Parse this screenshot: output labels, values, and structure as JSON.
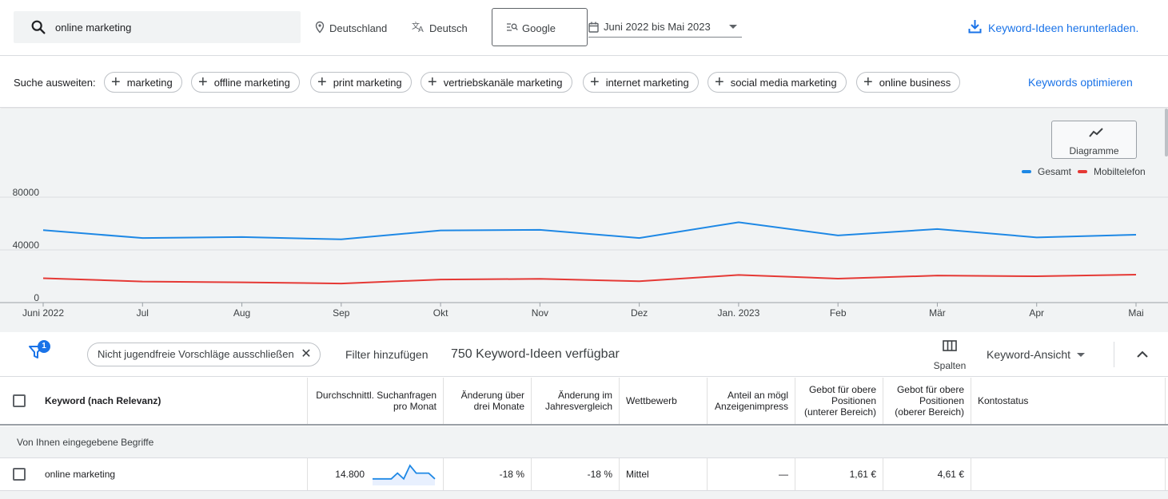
{
  "search": {
    "query": "online marketing"
  },
  "top": {
    "location": "Deutschland",
    "language": "Deutsch",
    "network": "Google",
    "date_range": "Juni 2022 bis Mai 2023",
    "download": "Keyword-Ideen herunterladen."
  },
  "expand": {
    "label": "Suche ausweiten:",
    "chips": [
      "marketing",
      "offline marketing",
      "print marketing",
      "vertriebskanäle marketing",
      "internet marketing",
      "social media marketing",
      "online business"
    ],
    "optimize": "Keywords optimieren"
  },
  "chart_button": {
    "label": "Diagramme"
  },
  "chart_data": {
    "type": "line",
    "x": [
      "Juni 2022",
      "Jul",
      "Aug",
      "Sep",
      "Okt",
      "Nov",
      "Dez",
      "Jan. 2023",
      "Feb",
      "Mär",
      "Apr",
      "Mai"
    ],
    "series": [
      {
        "name": "Gesamt",
        "color": "#1e88e5",
        "values": [
          55000,
          49000,
          49800,
          48000,
          54800,
          55200,
          49000,
          61000,
          51000,
          55800,
          49500,
          51500
        ]
      },
      {
        "name": "Mobiltelefon",
        "color": "#e53935",
        "values": [
          18500,
          16000,
          15400,
          14500,
          17500,
          18000,
          16200,
          21000,
          18200,
          20500,
          20000,
          21200
        ]
      }
    ],
    "yticks": [
      "0",
      "40000",
      "80000"
    ],
    "ylim": [
      0,
      80000
    ],
    "grid": true,
    "legend": "top-right"
  },
  "filter": {
    "badge_count": "1",
    "active_filter": "Nicht jugendfreie Vorschläge ausschließen",
    "add_filter": "Filter hinzufügen",
    "ideas_count": "750 Keyword-Ideen verfügbar",
    "columns": "Spalten",
    "view": "Keyword-Ansicht"
  },
  "table": {
    "headers": {
      "keyword": "Keyword (nach Relevanz)",
      "avg_searches": "Durchschnittl. Suchanfragen pro Monat",
      "change_3m": "Änderung über drei Monate",
      "change_yoy": "Änderung im Jahresvergleich",
      "competition": "Wettbewerb",
      "impr_share": "Anteil an mögl Anzeigenimpress",
      "bid_low": "Gebot für obere Positionen (unterer Bereich)",
      "bid_high": "Gebot für obere Positionen (oberer Bereich)",
      "status": "Kontostatus"
    },
    "group_label": "Von Ihnen eingegebene Begriffe",
    "rows": [
      {
        "keyword": "online marketing",
        "avg_searches": "14.800",
        "trend": [
          3,
          3,
          3,
          3,
          6,
          3,
          10,
          6,
          6,
          6,
          3
        ],
        "change_3m": "-18 %",
        "change_yoy": "-18 %",
        "competition": "Mittel",
        "impr_share": "—",
        "bid_low": "1,61 €",
        "bid_high": "4,61 €",
        "status": ""
      }
    ]
  }
}
